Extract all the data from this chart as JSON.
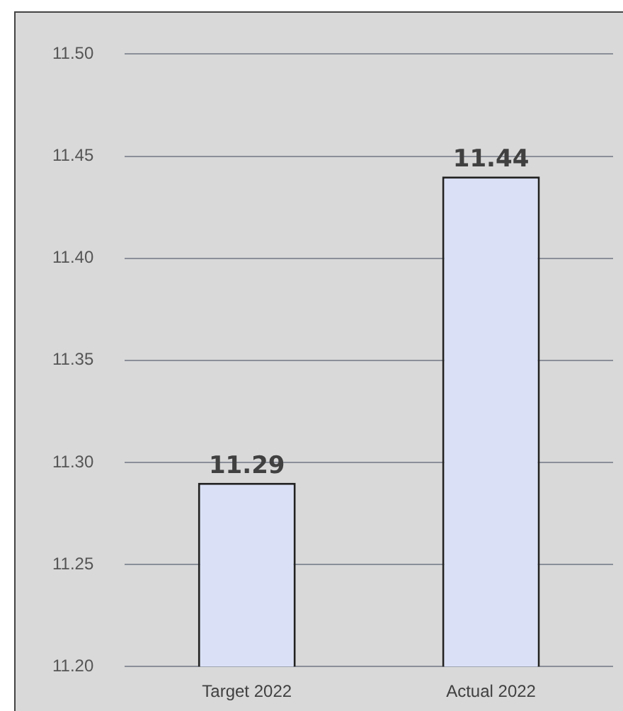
{
  "chart_data": {
    "type": "bar",
    "categories": [
      "Target 2022",
      "Actual 2022"
    ],
    "values": [
      11.29,
      11.44
    ],
    "color": "#dae1f7",
    "ylim": [
      11.2,
      11.5
    ],
    "yticks": [
      {
        "value": 11.2,
        "label": "11.20"
      },
      {
        "value": 11.25,
        "label": "11.25"
      },
      {
        "value": 11.3,
        "label": "11.30"
      },
      {
        "value": 11.35,
        "label": "11.35"
      },
      {
        "value": 11.4,
        "label": "11.40"
      },
      {
        "value": 11.45,
        "label": "11.45"
      },
      {
        "value": 11.5,
        "label": "11.50"
      }
    ],
    "grid": "y",
    "data_labels": true
  }
}
